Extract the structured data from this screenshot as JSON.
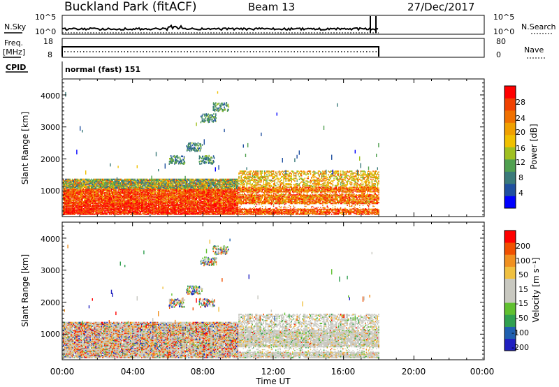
{
  "header": {
    "station": "Buckland Park (fitACF)",
    "beam": "Beam 13",
    "date": "27/Dec/2017"
  },
  "noise_panel": {
    "left_label": "N.Sky",
    "left_ticks": [
      "10^5",
      "10^0"
    ],
    "right_label": "N.Search",
    "right_ticks": [
      "10^5",
      "10^0"
    ]
  },
  "freq_panel": {
    "left_label_top": "Freq.",
    "left_label_bottom": "[MHz]",
    "left_ticks": [
      "18",
      "8"
    ],
    "right_label": "Nave",
    "right_ticks": [
      "80",
      "0"
    ]
  },
  "cpid_panel": {
    "label": "CPID",
    "value": "normal (fast) 151"
  },
  "colors": {
    "power": [
      "#0000ff",
      "#2050a0",
      "#3a7a7a",
      "#50a050",
      "#a0c020",
      "#f0c000",
      "#f0a000",
      "#f07000",
      "#f04000",
      "#ff0000"
    ],
    "velocity": [
      "#2020c0",
      "#2060b0",
      "#30a050",
      "#60c030",
      "#c8c8c0",
      "#c8c8c0",
      "#f0c040",
      "#f09020",
      "#f05000",
      "#ff0000"
    ]
  },
  "chart_data": [
    {
      "type": "heatmap",
      "name": "power",
      "ylabel": "Slant Range [km]",
      "yticks": [
        "1000",
        "2000",
        "3000",
        "4000"
      ],
      "ylim": [
        200,
        4500
      ],
      "xlim": [
        "00:00",
        "24:00"
      ],
      "colorbar_label": "Power [dB]",
      "colorbar_ticks": [
        "4",
        "8",
        "12",
        "16",
        "20",
        "24",
        "28"
      ],
      "colorbar_range": [
        0,
        32
      ]
    },
    {
      "type": "heatmap",
      "name": "velocity",
      "ylabel": "Slant Range [km]",
      "yticks": [
        "1000",
        "2000",
        "3000",
        "4000"
      ],
      "ylim": [
        200,
        4500
      ],
      "xlim": [
        "00:00",
        "24:00"
      ],
      "colorbar_label": "Velocity [m s⁻¹]",
      "colorbar_ticks": [
        "-200",
        "-100",
        "-50",
        "-15",
        "15",
        "50",
        "100",
        "200"
      ],
      "xlabel": "Time UT",
      "xticks": [
        "00:00",
        "04:00",
        "08:00",
        "12:00",
        "16:00",
        "20:00",
        "00:00"
      ]
    }
  ]
}
